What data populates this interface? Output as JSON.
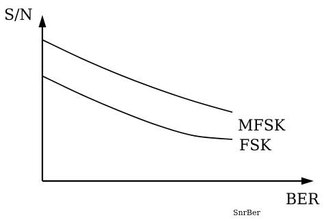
{
  "chart_data": {
    "type": "line",
    "title": "",
    "caption": "SnrBer",
    "xlabel": "BER",
    "ylabel": "S/N",
    "grid": false,
    "legend": "labels at line ends",
    "x_ticks": false,
    "y_ticks": false,
    "series": [
      {
        "name": "MFSK",
        "x": [
          0,
          0.2,
          0.4,
          0.6,
          0.8,
          1.0
        ],
        "y": [
          0.78,
          0.68,
          0.59,
          0.51,
          0.44,
          0.38
        ]
      },
      {
        "name": "FSK",
        "x": [
          0,
          0.2,
          0.4,
          0.6,
          0.8,
          1.0
        ],
        "y": [
          0.58,
          0.48,
          0.39,
          0.31,
          0.25,
          0.23
        ]
      }
    ]
  }
}
